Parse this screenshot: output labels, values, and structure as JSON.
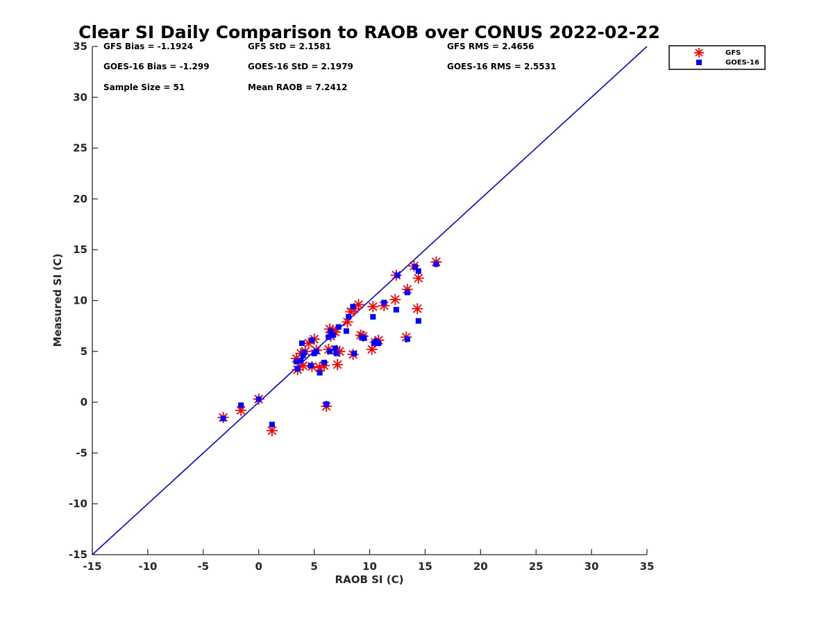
{
  "chart_data": {
    "type": "scatter",
    "title": "Clear SI Daily Comparison to RAOB over CONUS 2022-02-22",
    "xlabel": "RAOB SI (C)",
    "ylabel": "Measured SI (C)",
    "xlim": [
      -15,
      35
    ],
    "ylim": [
      -15,
      35
    ],
    "xticks": [
      -15,
      -10,
      -5,
      0,
      5,
      10,
      15,
      20,
      25,
      30,
      35
    ],
    "yticks": [
      -15,
      -10,
      -5,
      0,
      5,
      10,
      15,
      20,
      25,
      30,
      35
    ],
    "grid": false,
    "legend_position": "outside-top-right",
    "one_to_one_line": {
      "from": [
        -15,
        -15
      ],
      "to": [
        35,
        35
      ],
      "color": "#0000cc"
    },
    "stats": {
      "gfs_bias": "GFS Bias = -1.1924",
      "gfs_std": "GFS StD = 2.1581",
      "gfs_rms": "GFS RMS = 2.4656",
      "goes_bias": "GOES-16 Bias = -1.299",
      "goes_std": "GOES-16 StD = 2.1979",
      "goes_rms": "GOES-16 RMS = 2.5531",
      "sample_size": "Sample Size = 51",
      "mean_raob": "Mean RAOB = 7.2412"
    },
    "series": [
      {
        "name": "GFS",
        "marker": "asterisk",
        "color": "#ff0000",
        "points": [
          [
            -3.2,
            -1.5
          ],
          [
            -1.6,
            -0.8
          ],
          [
            0.0,
            0.3
          ],
          [
            1.2,
            -2.8
          ],
          [
            3.4,
            4.3
          ],
          [
            3.5,
            3.2
          ],
          [
            3.8,
            4.8
          ],
          [
            4.0,
            3.6
          ],
          [
            4.2,
            5.0
          ],
          [
            4.5,
            5.8
          ],
          [
            4.8,
            3.5
          ],
          [
            5.0,
            6.2
          ],
          [
            5.2,
            5.1
          ],
          [
            5.5,
            3.4
          ],
          [
            5.9,
            3.6
          ],
          [
            6.1,
            -0.4
          ],
          [
            6.3,
            5.2
          ],
          [
            6.4,
            7.2
          ],
          [
            6.5,
            6.5
          ],
          [
            6.7,
            7.0
          ],
          [
            6.9,
            6.9
          ],
          [
            7.0,
            5.1
          ],
          [
            7.1,
            3.7
          ],
          [
            7.3,
            5.0
          ],
          [
            8.0,
            7.9
          ],
          [
            8.3,
            8.9
          ],
          [
            8.5,
            4.7
          ],
          [
            8.6,
            9.2
          ],
          [
            9.0,
            9.6
          ],
          [
            9.2,
            6.6
          ],
          [
            9.4,
            6.5
          ],
          [
            10.2,
            5.2
          ],
          [
            10.3,
            9.4
          ],
          [
            10.5,
            5.9
          ],
          [
            10.8,
            6.1
          ],
          [
            11.3,
            9.5
          ],
          [
            12.3,
            10.1
          ],
          [
            12.4,
            12.5
          ],
          [
            13.3,
            6.4
          ],
          [
            13.4,
            11.1
          ],
          [
            14.0,
            13.4
          ],
          [
            14.3,
            9.2
          ],
          [
            14.4,
            12.2
          ],
          [
            16.0,
            13.8
          ]
        ]
      },
      {
        "name": "GOES-16",
        "marker": "square",
        "color": "#0000ff",
        "points": [
          [
            -3.2,
            -1.6
          ],
          [
            -1.6,
            -0.3
          ],
          [
            0.0,
            0.3
          ],
          [
            1.2,
            -2.2
          ],
          [
            3.4,
            4.0
          ],
          [
            3.5,
            3.3
          ],
          [
            3.8,
            4.1
          ],
          [
            3.9,
            5.8
          ],
          [
            4.0,
            4.6
          ],
          [
            4.1,
            4.9
          ],
          [
            4.7,
            3.6
          ],
          [
            4.8,
            6.1
          ],
          [
            5.0,
            4.8
          ],
          [
            5.2,
            5.0
          ],
          [
            5.5,
            2.9
          ],
          [
            5.9,
            3.9
          ],
          [
            6.1,
            -0.2
          ],
          [
            6.3,
            6.4
          ],
          [
            6.4,
            5.0
          ],
          [
            6.5,
            7.0
          ],
          [
            6.7,
            6.6
          ],
          [
            6.9,
            5.3
          ],
          [
            7.0,
            4.8
          ],
          [
            7.2,
            7.4
          ],
          [
            7.9,
            7.0
          ],
          [
            8.1,
            8.4
          ],
          [
            8.5,
            9.4
          ],
          [
            8.6,
            4.8
          ],
          [
            9.3,
            6.4
          ],
          [
            9.5,
            6.3
          ],
          [
            10.3,
            8.4
          ],
          [
            10.4,
            5.8
          ],
          [
            10.6,
            6.0
          ],
          [
            10.8,
            5.8
          ],
          [
            11.3,
            9.8
          ],
          [
            12.4,
            9.1
          ],
          [
            12.5,
            12.5
          ],
          [
            13.4,
            10.8
          ],
          [
            13.4,
            6.2
          ],
          [
            14.1,
            13.3
          ],
          [
            14.4,
            12.9
          ],
          [
            14.4,
            8.0
          ],
          [
            16.0,
            13.6
          ]
        ]
      }
    ]
  }
}
